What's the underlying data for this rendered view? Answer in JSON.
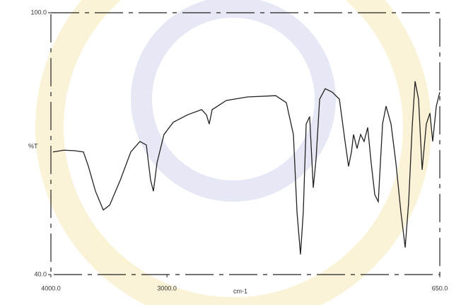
{
  "chart_data": {
    "type": "line",
    "y_label": "%T",
    "x_label": "cm-1",
    "xlim": [
      4000,
      650
    ],
    "xticks": [
      {
        "value": 4000,
        "label": "4000.0"
      },
      {
        "value": 3000,
        "label": "3000.0"
      },
      {
        "value": 650,
        "label": "650.0"
      }
    ],
    "ylim": [
      40,
      100
    ],
    "yticks": [
      {
        "value": 100,
        "label": "100.0"
      },
      {
        "value": 40,
        "label": "40.0"
      }
    ],
    "x": [
      3982,
      3890,
      3799,
      3720,
      3677,
      3616,
      3549,
      3494,
      3403,
      3312,
      3233,
      3178,
      3141,
      3117,
      3086,
      3026,
      2946,
      2824,
      2702,
      2660,
      2636,
      2611,
      2489,
      2307,
      2063,
      1972,
      1911,
      1880,
      1850,
      1826,
      1801,
      1771,
      1740,
      1716,
      1685,
      1637,
      1576,
      1515,
      1466,
      1436,
      1411,
      1393,
      1363,
      1332,
      1302,
      1271,
      1241,
      1210,
      1180,
      1143,
      1113,
      1070,
      1028,
      985,
      948,
      918,
      888,
      863,
      833,
      802,
      766,
      735,
      711,
      680,
      650
    ],
    "series": [
      {
        "name": "%T",
        "color": "#222222",
        "values": [
          68.1,
          68.5,
          68.4,
          68.1,
          64.8,
          59.1,
          54.8,
          55.9,
          61.6,
          68.1,
          70.5,
          69.7,
          61.6,
          59.1,
          65.6,
          72.1,
          74.9,
          76.6,
          77.8,
          76.6,
          74.5,
          77.8,
          79.9,
          80.7,
          81.0,
          79.4,
          72.1,
          54.3,
          44.6,
          54.3,
          74.5,
          76.2,
          59.9,
          66.4,
          80.2,
          82.6,
          81.8,
          80.2,
          70.5,
          64.8,
          68.1,
          72.1,
          68.9,
          72.1,
          70.5,
          73.7,
          65.6,
          58.3,
          56.7,
          74.5,
          78.6,
          74.5,
          65.6,
          54.3,
          46.2,
          56.7,
          73.7,
          84.3,
          80.2,
          64.0,
          74.5,
          77.0,
          70.5,
          78.6,
          81.8
        ]
      }
    ]
  }
}
